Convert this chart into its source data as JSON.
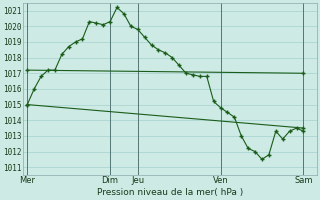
{
  "background_color": "#cdeae4",
  "grid_color": "#99cccc",
  "line_color": "#1a5c1a",
  "marker_color": "#1a5c1a",
  "ylabel_ticks": [
    1011,
    1012,
    1013,
    1014,
    1015,
    1016,
    1017,
    1018,
    1019,
    1020,
    1021
  ],
  "ylim": [
    1010.5,
    1021.5
  ],
  "xlabel": "Pression niveau de la mer( hPa )",
  "day_labels": [
    "Mer",
    "Dim",
    "Jeu",
    "Ven",
    "Sam"
  ],
  "day_positions": [
    0,
    72,
    96,
    168,
    240
  ],
  "xlim": [
    -4,
    252
  ],
  "series1_x": [
    0,
    6,
    12,
    18,
    24,
    30,
    36,
    42,
    48,
    54,
    60,
    66,
    72,
    78,
    84,
    90,
    96,
    102,
    108,
    114,
    120,
    126,
    132,
    138,
    144,
    150,
    156,
    162,
    168,
    174,
    180,
    186,
    192,
    198,
    204,
    210,
    216,
    222,
    228,
    234,
    240
  ],
  "series1_y": [
    1015.0,
    1016.0,
    1016.8,
    1017.2,
    1017.2,
    1018.2,
    1018.7,
    1019.0,
    1019.2,
    1020.3,
    1020.2,
    1020.1,
    1020.3,
    1021.2,
    1020.8,
    1020.0,
    1019.8,
    1019.3,
    1018.8,
    1018.5,
    1018.3,
    1018.0,
    1017.5,
    1017.0,
    1016.9,
    1016.8,
    1016.8,
    1015.2,
    1014.8,
    1014.5,
    1014.2,
    1013.0,
    1012.2,
    1012.0,
    1011.5,
    1011.8,
    1013.3,
    1012.8,
    1013.3,
    1013.5,
    1013.3
  ],
  "series2_x": [
    0,
    240
  ],
  "series2_y": [
    1017.2,
    1017.0
  ],
  "series3_x": [
    0,
    240
  ],
  "series3_y": [
    1015.0,
    1013.5
  ],
  "vline_color": "#557777",
  "spine_color": "#88aaaa"
}
